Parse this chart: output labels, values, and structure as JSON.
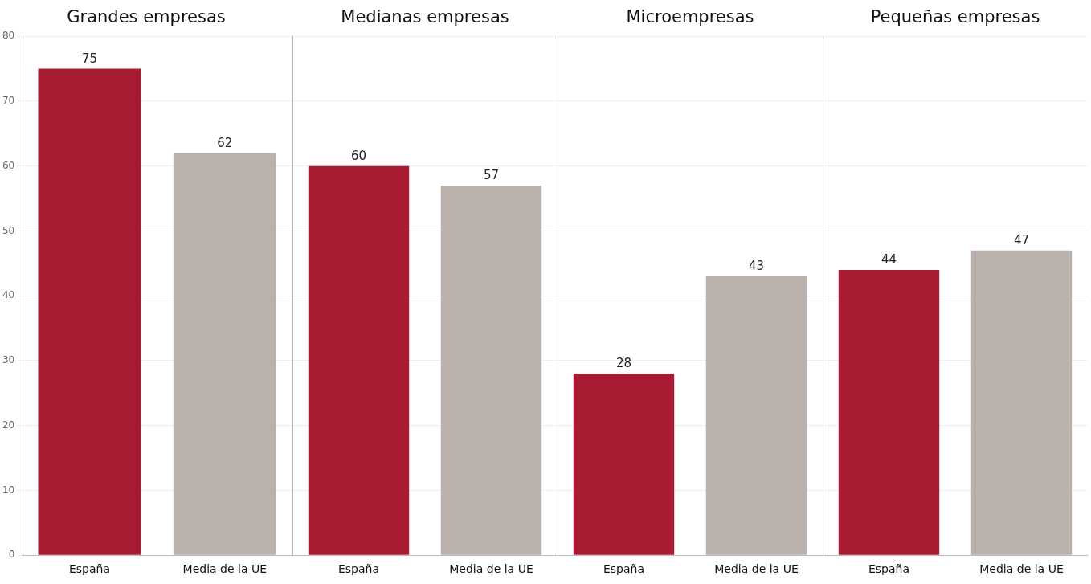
{
  "chart_data": [
    {
      "type": "bar",
      "title": "Grandes empresas",
      "categories": [
        "España",
        "Media de la UE"
      ],
      "values": [
        75,
        62
      ],
      "colors": [
        "#a91b32",
        "#bab1ac"
      ],
      "ylim": [
        0,
        80
      ],
      "yticks": [
        0,
        10,
        20,
        30,
        40,
        50,
        60,
        70,
        80
      ],
      "grid": "y",
      "data_labels": true
    },
    {
      "type": "bar",
      "title": "Medianas empresas",
      "categories": [
        "España",
        "Media de la UE"
      ],
      "values": [
        60,
        57
      ],
      "colors": [
        "#a91b32",
        "#bab1ac"
      ],
      "ylim": [
        0,
        80
      ],
      "yticks": [
        0,
        10,
        20,
        30,
        40,
        50,
        60,
        70,
        80
      ],
      "grid": "y",
      "data_labels": true,
      "tick_labels": "x"
    },
    {
      "type": "bar",
      "title": "Microempresas",
      "categories": [
        "España",
        "Media de la UE"
      ],
      "values": [
        28,
        43
      ],
      "colors": [
        "#a91b32",
        "#bab1ac"
      ],
      "ylim": [
        0,
        80
      ],
      "yticks": [
        0,
        10,
        20,
        30,
        40,
        50,
        60,
        70,
        80
      ],
      "grid": "y",
      "data_labels": true,
      "tick_labels": "x"
    },
    {
      "type": "bar",
      "title": "Pequeñas empresas",
      "categories": [
        "España",
        "Media de la UE"
      ],
      "values": [
        44,
        47
      ],
      "colors": [
        "#a91b32",
        "#bab1ac"
      ],
      "ylim": [
        0,
        80
      ],
      "yticks": [
        0,
        10,
        20,
        30,
        40,
        50,
        60,
        70,
        80
      ],
      "grid": "y",
      "data_labels": true,
      "tick_labels": "x"
    }
  ]
}
